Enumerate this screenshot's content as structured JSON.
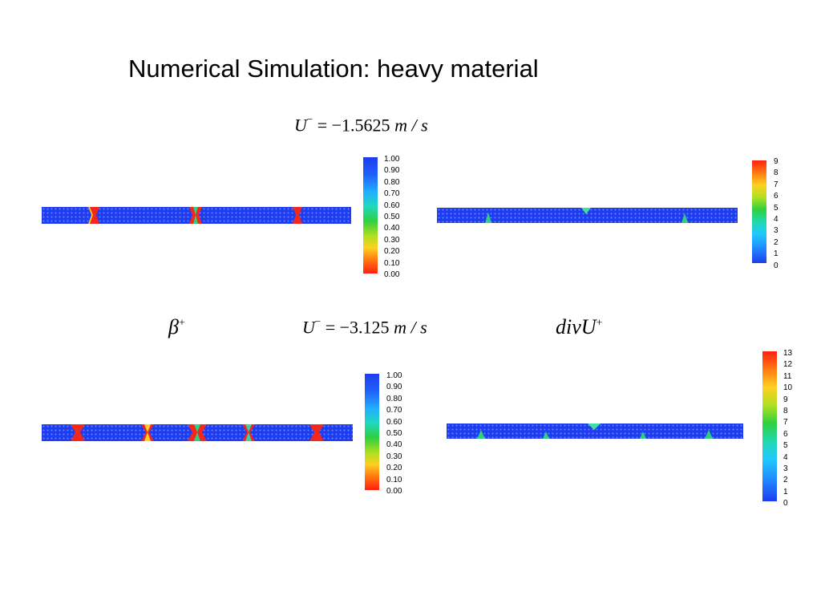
{
  "title": "Numerical Simulation: heavy material",
  "equations": {
    "top": {
      "lhs": "U",
      "sup": "−",
      "rhs": "= −1.5625",
      "unit": "m / s"
    },
    "bottom": {
      "lhs": "U",
      "sup": "−",
      "rhs": "= −3.125",
      "unit": "m / s"
    }
  },
  "labels": {
    "beta": {
      "base": "β",
      "sup": "+"
    },
    "div": {
      "base": "divU",
      "sup": "+"
    }
  },
  "colorbars": {
    "beta_top": [
      "1.00",
      "0.90",
      "0.80",
      "0.70",
      "0.60",
      "0.50",
      "0.40",
      "0.30",
      "0.20",
      "0.10",
      "0.00"
    ],
    "div_top": [
      "9",
      "8",
      "7",
      "6",
      "5",
      "4",
      "3",
      "2",
      "1",
      "0"
    ],
    "beta_bottom": [
      "1.00",
      "0.90",
      "0.80",
      "0.70",
      "0.60",
      "0.50",
      "0.40",
      "0.30",
      "0.20",
      "0.10",
      "0.00"
    ],
    "div_bottom": [
      "13",
      "12",
      "11",
      "10",
      "9",
      "8",
      "7",
      "6",
      "5",
      "4",
      "3",
      "2",
      "1",
      "0"
    ]
  },
  "colors": {
    "field_blue": "#1e3df0",
    "hot_red": "#f0281e",
    "colormap": [
      "#ff2010",
      "#ff7a10",
      "#ffd020",
      "#b0e020",
      "#30d040",
      "#20d8b0",
      "#20c8ff",
      "#2090ff",
      "#2050f0",
      "#1e3df0"
    ]
  }
}
